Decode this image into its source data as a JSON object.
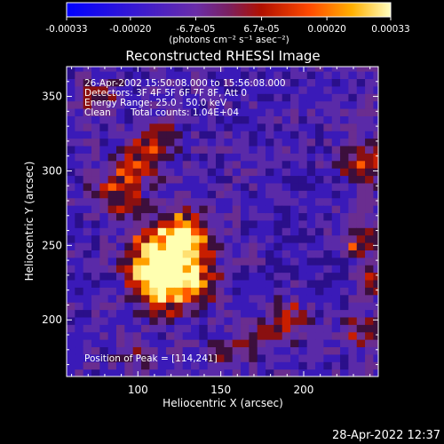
{
  "chart_data": {
    "type": "heatmap",
    "title": "Reconstructed RHESSI Image",
    "xlabel": "Heliocentric X (arcsec)",
    "ylabel": "Heliocentric Y (arcsec)",
    "xlim": [
      57,
      245
    ],
    "ylim": [
      162,
      370
    ],
    "x_ticks": [
      100,
      150,
      200
    ],
    "y_ticks": [
      200,
      250,
      300,
      350
    ],
    "colorbar": {
      "range": [
        -0.00033,
        0.00033
      ],
      "tick_labels": [
        "-0.00033",
        "-0.00020",
        "-6.7e-05",
        "6.7e-05",
        "0.00020",
        "0.00033"
      ],
      "tick_values": [
        -0.00033,
        -0.0002,
        -6.7e-05,
        6.7e-05,
        0.0002,
        0.00033
      ],
      "unit_label": "(photons cm⁻² s⁻¹ asec⁻²)",
      "colors": [
        "#0000ff",
        "#4a1aa0",
        "#6a2da8",
        "#8a1a40",
        "#c81e00",
        "#ff6a00",
        "#ffc000",
        "#ffff90"
      ]
    },
    "annotations": {
      "time_range": "26-Apr-2002 15:50:08.000 to 15:56:08.000",
      "detectors": "Detectors: 3F 4F 5F 6F 7F 8F, Att 0",
      "energy_range": "Energy Range: 25.0 - 50.0 keV",
      "method": "Clean",
      "total_counts": "Total counts: 1.04E+04",
      "peak": "Position of Peak = [114,241]"
    },
    "peak": [
      114,
      241
    ]
  },
  "footer": {
    "timestamp": "28-Apr-2022 12:37"
  }
}
